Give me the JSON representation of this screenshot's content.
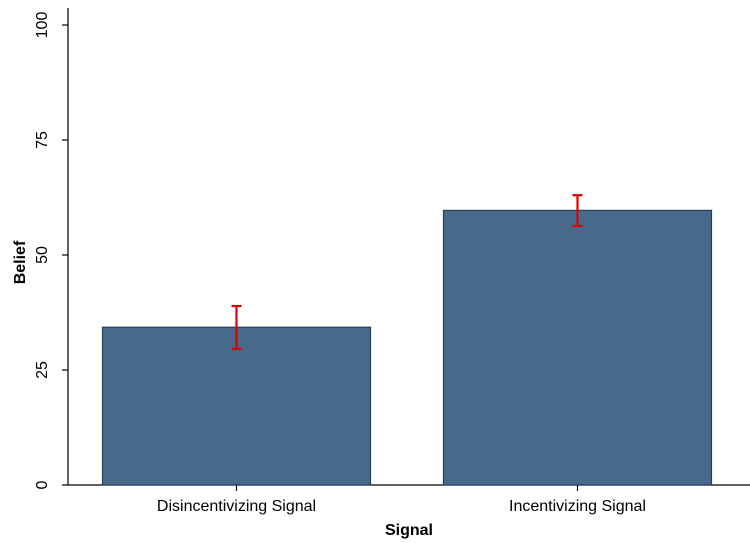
{
  "chart_data": {
    "type": "bar",
    "title": "",
    "xlabel": "Signal",
    "ylabel": "Belief",
    "categories": [
      "Disincentivizing Signal",
      "Incentivizing Signal"
    ],
    "values": [
      34.3,
      59.7
    ],
    "error_low": [
      29.6,
      56.3
    ],
    "error_high": [
      38.9,
      63.0
    ],
    "ylim": [
      0,
      100
    ],
    "yticks": [
      0,
      25,
      50,
      75,
      100
    ],
    "grid": false,
    "legend": "none",
    "bar_color": "#49698a",
    "bar_edge_color": "#263f5a",
    "error_color": "#dd0000"
  }
}
